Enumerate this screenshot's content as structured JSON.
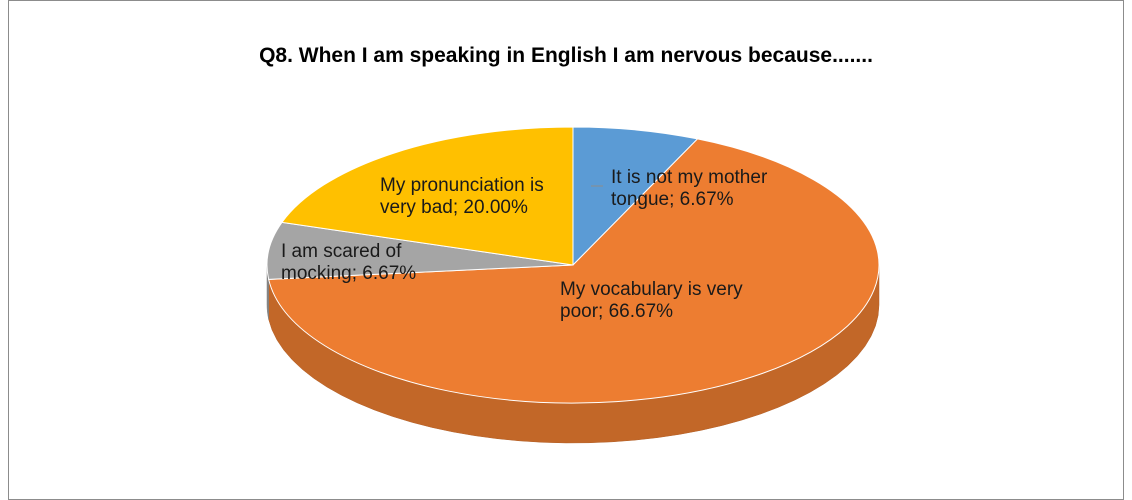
{
  "chart_data": {
    "type": "pie",
    "title": "Q8. When I am speaking in English I am nervous because.......",
    "values": [
      6.67,
      66.67,
      6.67,
      20.0
    ],
    "value_labels": [
      "It is not my mother tongue; 6.67%",
      "My vocabulary is very poor; 66.67%",
      "I am scared of mocking; 6.67%",
      "My pronunciation is very bad; 20.00%"
    ],
    "colors": [
      "#5b9bd5",
      "#ed7d31",
      "#a5a5a5",
      "#ffc000"
    ]
  }
}
